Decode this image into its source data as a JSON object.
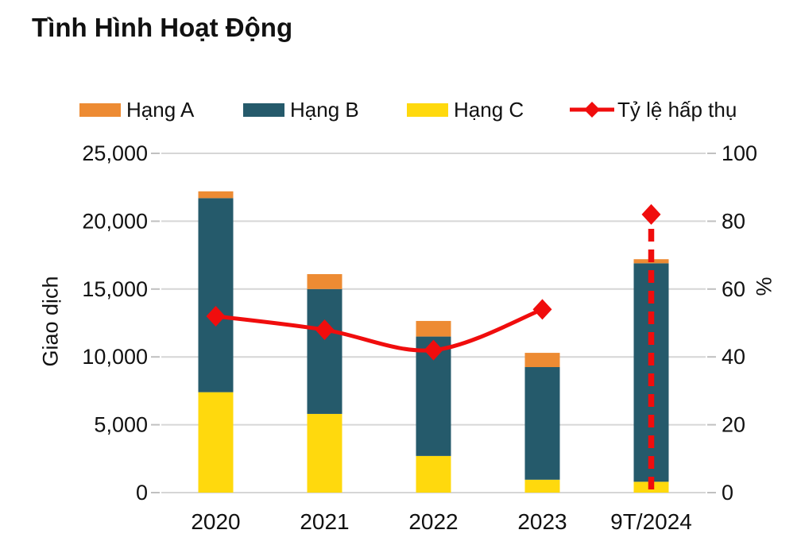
{
  "title": "Tình Hình Hoạt Động",
  "legend": {
    "items": [
      {
        "label": "Hạng A",
        "color": "#ED8B33",
        "marker": "box"
      },
      {
        "label": "Hạng B",
        "color": "#255A6B",
        "marker": "box"
      },
      {
        "label": "Hạng C",
        "color": "#FFD90D",
        "marker": "box"
      },
      {
        "label": "Tỷ lệ hấp thụ",
        "color": "#F00D0D",
        "marker": "line-diamond"
      }
    ]
  },
  "chart_data": {
    "type": "bar",
    "subtype": "stacked-bars-with-line-overlay",
    "title": "Tình Hình Hoạt Động",
    "categories": [
      "2020",
      "2021",
      "2022",
      "2023",
      "9T/2024"
    ],
    "series": [
      {
        "name": "Hạng C",
        "color": "#FFD90D",
        "values": [
          7400,
          5800,
          2700,
          950,
          800
        ]
      },
      {
        "name": "Hạng B",
        "color": "#255A6B",
        "values": [
          14300,
          9200,
          8800,
          8300,
          16100
        ]
      },
      {
        "name": "Hạng A",
        "color": "#ED8B33",
        "values": [
          500,
          1100,
          1150,
          1050,
          300
        ]
      }
    ],
    "stack_totals": [
      22200,
      16100,
      12650,
      10300,
      17200
    ],
    "line": {
      "name": "Tỷ lệ hấp thụ",
      "color": "#F00D0D",
      "values": [
        52,
        48,
        42,
        54,
        82
      ],
      "axis": "right",
      "solid_through_index": 3,
      "last_point_dashed_drop": true,
      "marker": "diamond"
    },
    "left_axis": {
      "label": "Giao dịch",
      "min": 0,
      "max": 25000,
      "ticks": [
        0,
        5000,
        10000,
        15000,
        20000,
        25000
      ]
    },
    "right_axis": {
      "label": "%",
      "min": 0,
      "max": 100,
      "ticks": [
        0,
        20,
        40,
        60,
        80,
        100
      ]
    },
    "grid": true,
    "legend_position": "top",
    "grid_color": "#D6D6D6",
    "tick_color": "#C0C0C0",
    "text_color": "#111111"
  }
}
